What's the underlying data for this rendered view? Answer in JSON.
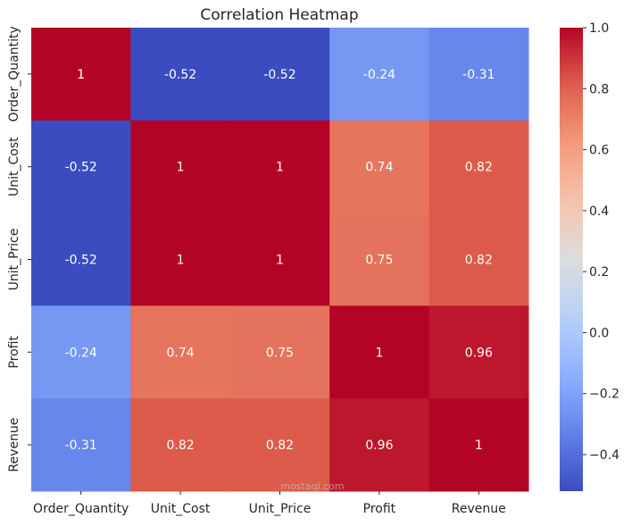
{
  "chart_data": {
    "type": "heatmap",
    "title": "Correlation Heatmap",
    "xlabel": "",
    "ylabel": "",
    "x_categories": [
      "Order_Quantity",
      "Unit_Cost",
      "Unit_Price",
      "Profit",
      "Revenue"
    ],
    "y_categories": [
      "Order_Quantity",
      "Unit_Cost",
      "Unit_Price",
      "Profit",
      "Revenue"
    ],
    "values": [
      [
        1,
        -0.52,
        -0.52,
        -0.24,
        -0.31
      ],
      [
        -0.52,
        1,
        1,
        0.74,
        0.82
      ],
      [
        -0.52,
        1,
        1,
        0.75,
        0.82
      ],
      [
        -0.24,
        0.74,
        0.75,
        1,
        0.96
      ],
      [
        -0.31,
        0.82,
        0.82,
        0.96,
        1
      ]
    ],
    "annotations": [
      [
        "1",
        "-0.52",
        "-0.52",
        "-0.24",
        "-0.31"
      ],
      [
        "-0.52",
        "1",
        "1",
        "0.74",
        "0.82"
      ],
      [
        "-0.52",
        "1",
        "1",
        "0.75",
        "0.82"
      ],
      [
        "-0.24",
        "0.74",
        "0.75",
        "1",
        "0.96"
      ],
      [
        "-0.31",
        "0.82",
        "0.82",
        "0.96",
        "1"
      ]
    ],
    "colormap": "coolwarm",
    "color_range": [
      -0.52,
      1.0
    ],
    "colorbar": {
      "ticks": [
        1.0,
        0.8,
        0.6,
        0.4,
        0.2,
        0.0,
        -0.2,
        -0.4
      ],
      "tick_labels": [
        "1.0",
        "0.8",
        "0.6",
        "0.4",
        "0.2",
        "0.0",
        "−0.2",
        "−0.4"
      ],
      "placement": "right"
    },
    "grid": false
  },
  "watermark": "mostaql.com"
}
